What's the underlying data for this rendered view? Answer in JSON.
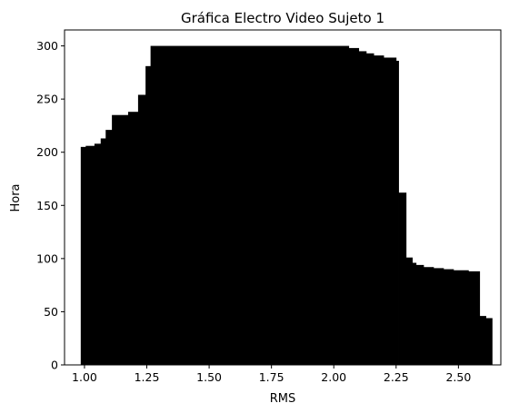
{
  "chart_data": {
    "type": "bar",
    "title": "Gráfica Electro Video Sujeto 1",
    "xlabel": "RMS",
    "ylabel": "Hora",
    "xlim": [
      0.92,
      2.67
    ],
    "ylim": [
      0,
      315
    ],
    "x_ticks": [
      "1.00",
      "1.25",
      "1.50",
      "1.75",
      "2.00",
      "2.25",
      "2.50"
    ],
    "x_tick_values": [
      1.0,
      1.25,
      1.5,
      1.75,
      2.0,
      2.25,
      2.5
    ],
    "y_ticks": [
      "0",
      "50",
      "100",
      "150",
      "200",
      "250",
      "300"
    ],
    "y_tick_values": [
      0,
      50,
      100,
      150,
      200,
      250,
      300
    ],
    "grid": false,
    "bar_color": "#000000",
    "bars": [
      {
        "x": [
          0.985,
          1.005
        ],
        "value": 205
      },
      {
        "x": [
          1.005,
          1.04
        ],
        "value": 206
      },
      {
        "x": [
          1.04,
          1.065
        ],
        "value": 208
      },
      {
        "x": [
          1.065,
          1.085
        ],
        "value": 213
      },
      {
        "x": [
          1.085,
          1.11
        ],
        "value": 221
      },
      {
        "x": [
          1.11,
          1.175
        ],
        "value": 235
      },
      {
        "x": [
          1.175,
          1.215
        ],
        "value": 238
      },
      {
        "x": [
          1.215,
          1.245
        ],
        "value": 254
      },
      {
        "x": [
          1.245,
          1.265
        ],
        "value": 281
      },
      {
        "x": [
          1.265,
          2.06
        ],
        "value": 300
      },
      {
        "x": [
          2.06,
          2.1
        ],
        "value": 298
      },
      {
        "x": [
          2.1,
          2.13
        ],
        "value": 295
      },
      {
        "x": [
          2.13,
          2.16
        ],
        "value": 293
      },
      {
        "x": [
          2.16,
          2.2
        ],
        "value": 291
      },
      {
        "x": [
          2.2,
          2.25
        ],
        "value": 289
      },
      {
        "x": [
          2.25,
          2.26
        ],
        "value": 286
      },
      {
        "x": [
          2.26,
          2.29
        ],
        "value": 162
      },
      {
        "x": [
          2.29,
          2.315
        ],
        "value": 101
      },
      {
        "x": [
          2.315,
          2.33
        ],
        "value": 96
      },
      {
        "x": [
          2.33,
          2.36
        ],
        "value": 94
      },
      {
        "x": [
          2.36,
          2.4
        ],
        "value": 92
      },
      {
        "x": [
          2.4,
          2.44
        ],
        "value": 91
      },
      {
        "x": [
          2.44,
          2.48
        ],
        "value": 90
      },
      {
        "x": [
          2.48,
          2.54
        ],
        "value": 89
      },
      {
        "x": [
          2.54,
          2.585
        ],
        "value": 88
      },
      {
        "x": [
          2.585,
          2.61
        ],
        "value": 46
      },
      {
        "x": [
          2.61,
          2.635
        ],
        "value": 44
      }
    ]
  }
}
